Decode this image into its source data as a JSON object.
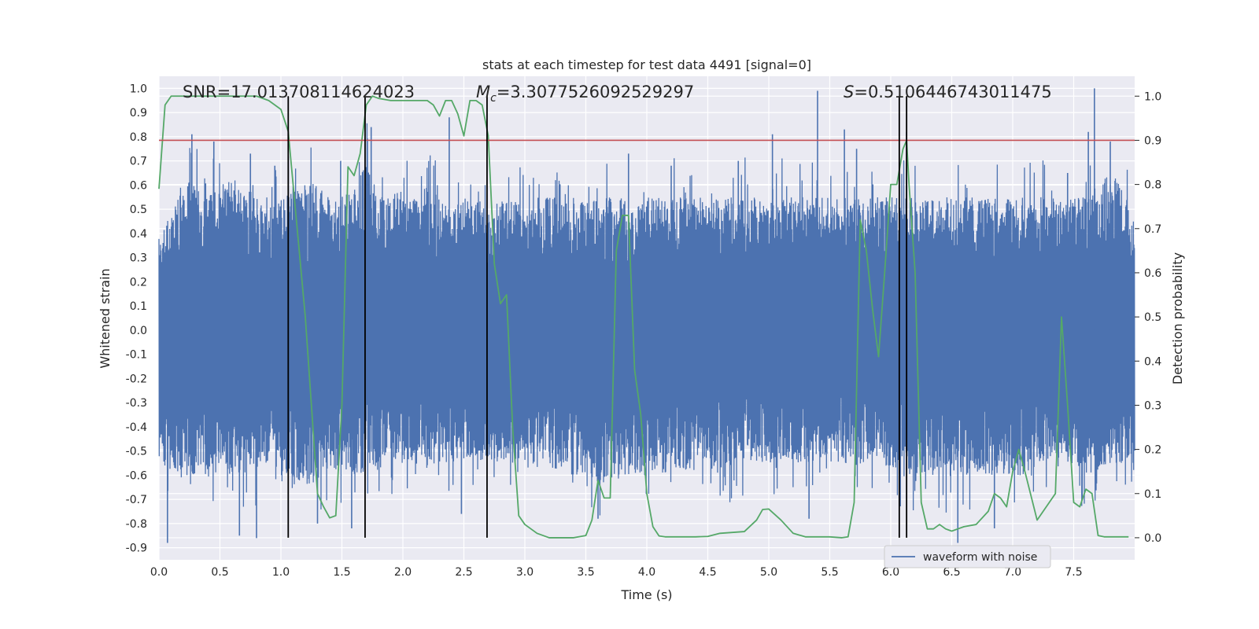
{
  "chart_data": {
    "type": "line",
    "title": "stats at each timestep for test data 4491 [signal=0]",
    "xlabel": "Time (s)",
    "ylabel": "Whitened strain",
    "ylabel_right": "Detection probability",
    "xlim": [
      0.0,
      8.0
    ],
    "ylim": [
      -0.95,
      1.05
    ],
    "ylim_right": [
      -0.05,
      1.045
    ],
    "x_ticks": [
      "0.0",
      "0.5",
      "1.0",
      "1.5",
      "2.0",
      "2.5",
      "3.0",
      "3.5",
      "4.0",
      "4.5",
      "5.0",
      "5.5",
      "6.0",
      "6.5",
      "7.0",
      "7.5"
    ],
    "y_ticks": [
      "1.0",
      "0.9",
      "0.8",
      "0.7",
      "0.6",
      "0.5",
      "0.4",
      "0.3",
      "0.2",
      "0.1",
      "0.0",
      "-0.1",
      "-0.2",
      "-0.3",
      "-0.4",
      "-0.5",
      "-0.6",
      "-0.7",
      "-0.8",
      "-0.9"
    ],
    "y_ticks_right": [
      "1.0",
      "0.9",
      "0.8",
      "0.7",
      "0.6",
      "0.5",
      "0.4",
      "0.3",
      "0.2",
      "0.1",
      "0.0"
    ],
    "annotations": {
      "snr": "SNR=17.013708114624023",
      "mc_symbol": "M",
      "mc_sub": "c",
      "mc_value": "=3.3077526092529297",
      "s_symbol": "S",
      "s_value": "=0.5106446743011475"
    },
    "legend": {
      "entries": [
        "waveform with noise"
      ],
      "placement": "lower-right"
    },
    "threshold": 0.9,
    "vlines": [
      1.06,
      1.69,
      2.69,
      6.07,
      6.13
    ],
    "series": [
      {
        "name": "waveform with noise",
        "color": "#4c72b0",
        "envelope_upper": [
          0.38,
          0.5,
          0.62,
          0.6,
          0.55,
          0.6,
          0.62,
          0.6,
          0.55,
          0.5,
          0.55,
          0.6,
          0.62,
          0.6,
          0.55,
          0.55,
          0.6,
          0.7,
          0.55,
          0.55,
          0.62,
          0.55,
          0.6,
          0.55,
          0.5,
          0.55,
          0.55,
          0.5,
          0.55,
          0.55,
          0.5,
          0.55,
          0.55,
          0.55,
          0.5,
          0.55,
          0.55,
          0.55,
          0.55,
          0.5,
          0.55,
          0.55,
          0.55,
          0.55,
          0.55,
          0.55,
          0.55,
          0.55,
          0.55,
          0.55,
          0.55,
          0.55,
          0.55,
          0.55,
          0.55,
          0.55,
          0.55,
          0.55,
          0.55,
          0.55,
          0.55,
          0.55,
          0.55,
          0.55,
          0.55,
          0.55,
          0.55,
          0.55,
          0.55,
          0.55,
          0.55,
          0.55,
          0.55,
          0.55,
          0.55,
          0.55,
          0.55,
          0.6,
          0.65,
          0.6,
          0.45
        ],
        "envelope_lower": [
          -0.55,
          -0.58,
          -0.62,
          -0.6,
          -0.6,
          -0.58,
          -0.6,
          -0.6,
          -0.58,
          -0.55,
          -0.6,
          -0.62,
          -0.65,
          -0.62,
          -0.6,
          -0.58,
          -0.6,
          -0.6,
          -0.58,
          -0.55,
          -0.55,
          -0.55,
          -0.58,
          -0.55,
          -0.55,
          -0.55,
          -0.55,
          -0.55,
          -0.55,
          -0.55,
          -0.55,
          -0.55,
          -0.55,
          -0.6,
          -0.6,
          -0.6,
          -0.65,
          -0.62,
          -0.6,
          -0.6,
          -0.6,
          -0.6,
          -0.58,
          -0.58,
          -0.58,
          -0.58,
          -0.55,
          -0.58,
          -0.55,
          -0.55,
          -0.55,
          -0.55,
          -0.55,
          -0.55,
          -0.55,
          -0.55,
          -0.55,
          -0.58,
          -0.55,
          -0.55,
          -0.6,
          -0.6,
          -0.6,
          -0.6,
          -0.6,
          -0.62,
          -0.6,
          -0.6,
          -0.6,
          -0.6,
          -0.6,
          -0.6,
          -0.55,
          -0.55,
          -0.55,
          -0.55,
          -0.6,
          -0.58,
          -0.55,
          -0.55,
          -0.5
        ],
        "peaks": [
          [
            0.07,
            -0.88
          ],
          [
            0.27,
            0.81
          ],
          [
            0.45,
            0.78
          ],
          [
            0.66,
            -0.85
          ],
          [
            0.75,
            0.73
          ],
          [
            0.8,
            -0.86
          ],
          [
            0.95,
            0.68
          ],
          [
            1.3,
            -0.8
          ],
          [
            1.49,
            0.7
          ],
          [
            1.58,
            -0.82
          ],
          [
            1.74,
            0.84
          ],
          [
            2.38,
            0.88
          ],
          [
            2.48,
            -0.76
          ],
          [
            3.6,
            -0.78
          ],
          [
            3.85,
            0.73
          ],
          [
            4.2,
            0.68
          ],
          [
            4.75,
            0.7
          ],
          [
            5.03,
            0.81
          ],
          [
            5.33,
            -0.78
          ],
          [
            5.4,
            0.99
          ],
          [
            5.62,
            0.83
          ],
          [
            5.72,
            0.75
          ],
          [
            6.13,
            0.82
          ],
          [
            6.55,
            -0.88
          ],
          [
            6.85,
            -0.82
          ],
          [
            7.45,
            0.65
          ],
          [
            7.62,
            0.82
          ],
          [
            7.67,
            1.0
          ],
          [
            7.8,
            0.78
          ]
        ]
      },
      {
        "name": "detection probability",
        "color": "#55a868",
        "axis": "right",
        "x": [
          0.0,
          0.05,
          0.1,
          0.2,
          0.3,
          0.4,
          0.5,
          0.6,
          0.7,
          0.8,
          0.9,
          1.0,
          1.06,
          1.1,
          1.2,
          1.3,
          1.35,
          1.4,
          1.45,
          1.5,
          1.55,
          1.6,
          1.65,
          1.7,
          1.75,
          1.8,
          1.9,
          2.0,
          2.1,
          2.2,
          2.25,
          2.3,
          2.35,
          2.4,
          2.45,
          2.5,
          2.55,
          2.6,
          2.65,
          2.7,
          2.75,
          2.8,
          2.85,
          2.9,
          2.95,
          3.0,
          3.1,
          3.2,
          3.3,
          3.4,
          3.5,
          3.55,
          3.6,
          3.65,
          3.7,
          3.75,
          3.8,
          3.85,
          3.9,
          3.95,
          4.0,
          4.05,
          4.1,
          4.15,
          4.2,
          4.3,
          4.4,
          4.5,
          4.6,
          4.7,
          4.8,
          4.9,
          4.95,
          5.0,
          5.1,
          5.2,
          5.3,
          5.4,
          5.5,
          5.6,
          5.65,
          5.7,
          5.75,
          5.8,
          5.85,
          5.9,
          5.95,
          6.0,
          6.05,
          6.1,
          6.13,
          6.15,
          6.2,
          6.25,
          6.3,
          6.35,
          6.4,
          6.45,
          6.5,
          6.55,
          6.6,
          6.7,
          6.8,
          6.85,
          6.9,
          6.95,
          7.0,
          7.05,
          7.1,
          7.2,
          7.3,
          7.35,
          7.4,
          7.45,
          7.5,
          7.55,
          7.6,
          7.65,
          7.7,
          7.75,
          7.8,
          7.85,
          7.9,
          7.95
        ],
        "y": [
          0.79,
          0.98,
          1.0,
          1.0,
          1.0,
          1.0,
          1.0,
          1.0,
          1.0,
          1.0,
          0.99,
          0.97,
          0.92,
          0.8,
          0.5,
          0.1,
          0.07,
          0.045,
          0.05,
          0.3,
          0.84,
          0.82,
          0.87,
          0.98,
          1.0,
          0.995,
          0.99,
          0.99,
          0.99,
          0.99,
          0.98,
          0.955,
          0.99,
          0.99,
          0.96,
          0.91,
          0.99,
          0.99,
          0.98,
          0.91,
          0.62,
          0.53,
          0.55,
          0.25,
          0.05,
          0.03,
          0.01,
          0.0,
          0.0,
          0.0,
          0.005,
          0.04,
          0.13,
          0.09,
          0.09,
          0.65,
          0.73,
          0.73,
          0.38,
          0.28,
          0.1,
          0.025,
          0.004,
          0.002,
          0.002,
          0.002,
          0.002,
          0.003,
          0.01,
          0.012,
          0.014,
          0.04,
          0.064,
          0.065,
          0.04,
          0.01,
          0.002,
          0.002,
          0.002,
          0.0,
          0.002,
          0.08,
          0.72,
          0.65,
          0.52,
          0.41,
          0.6,
          0.8,
          0.8,
          0.88,
          0.9,
          0.8,
          0.6,
          0.08,
          0.02,
          0.02,
          0.03,
          0.02,
          0.015,
          0.02,
          0.025,
          0.03,
          0.06,
          0.1,
          0.09,
          0.07,
          0.15,
          0.2,
          0.15,
          0.04,
          0.08,
          0.1,
          0.5,
          0.3,
          0.08,
          0.07,
          0.11,
          0.1,
          0.005,
          0.002,
          0.002,
          0.002,
          0.002,
          0.002
        ]
      }
    ]
  }
}
